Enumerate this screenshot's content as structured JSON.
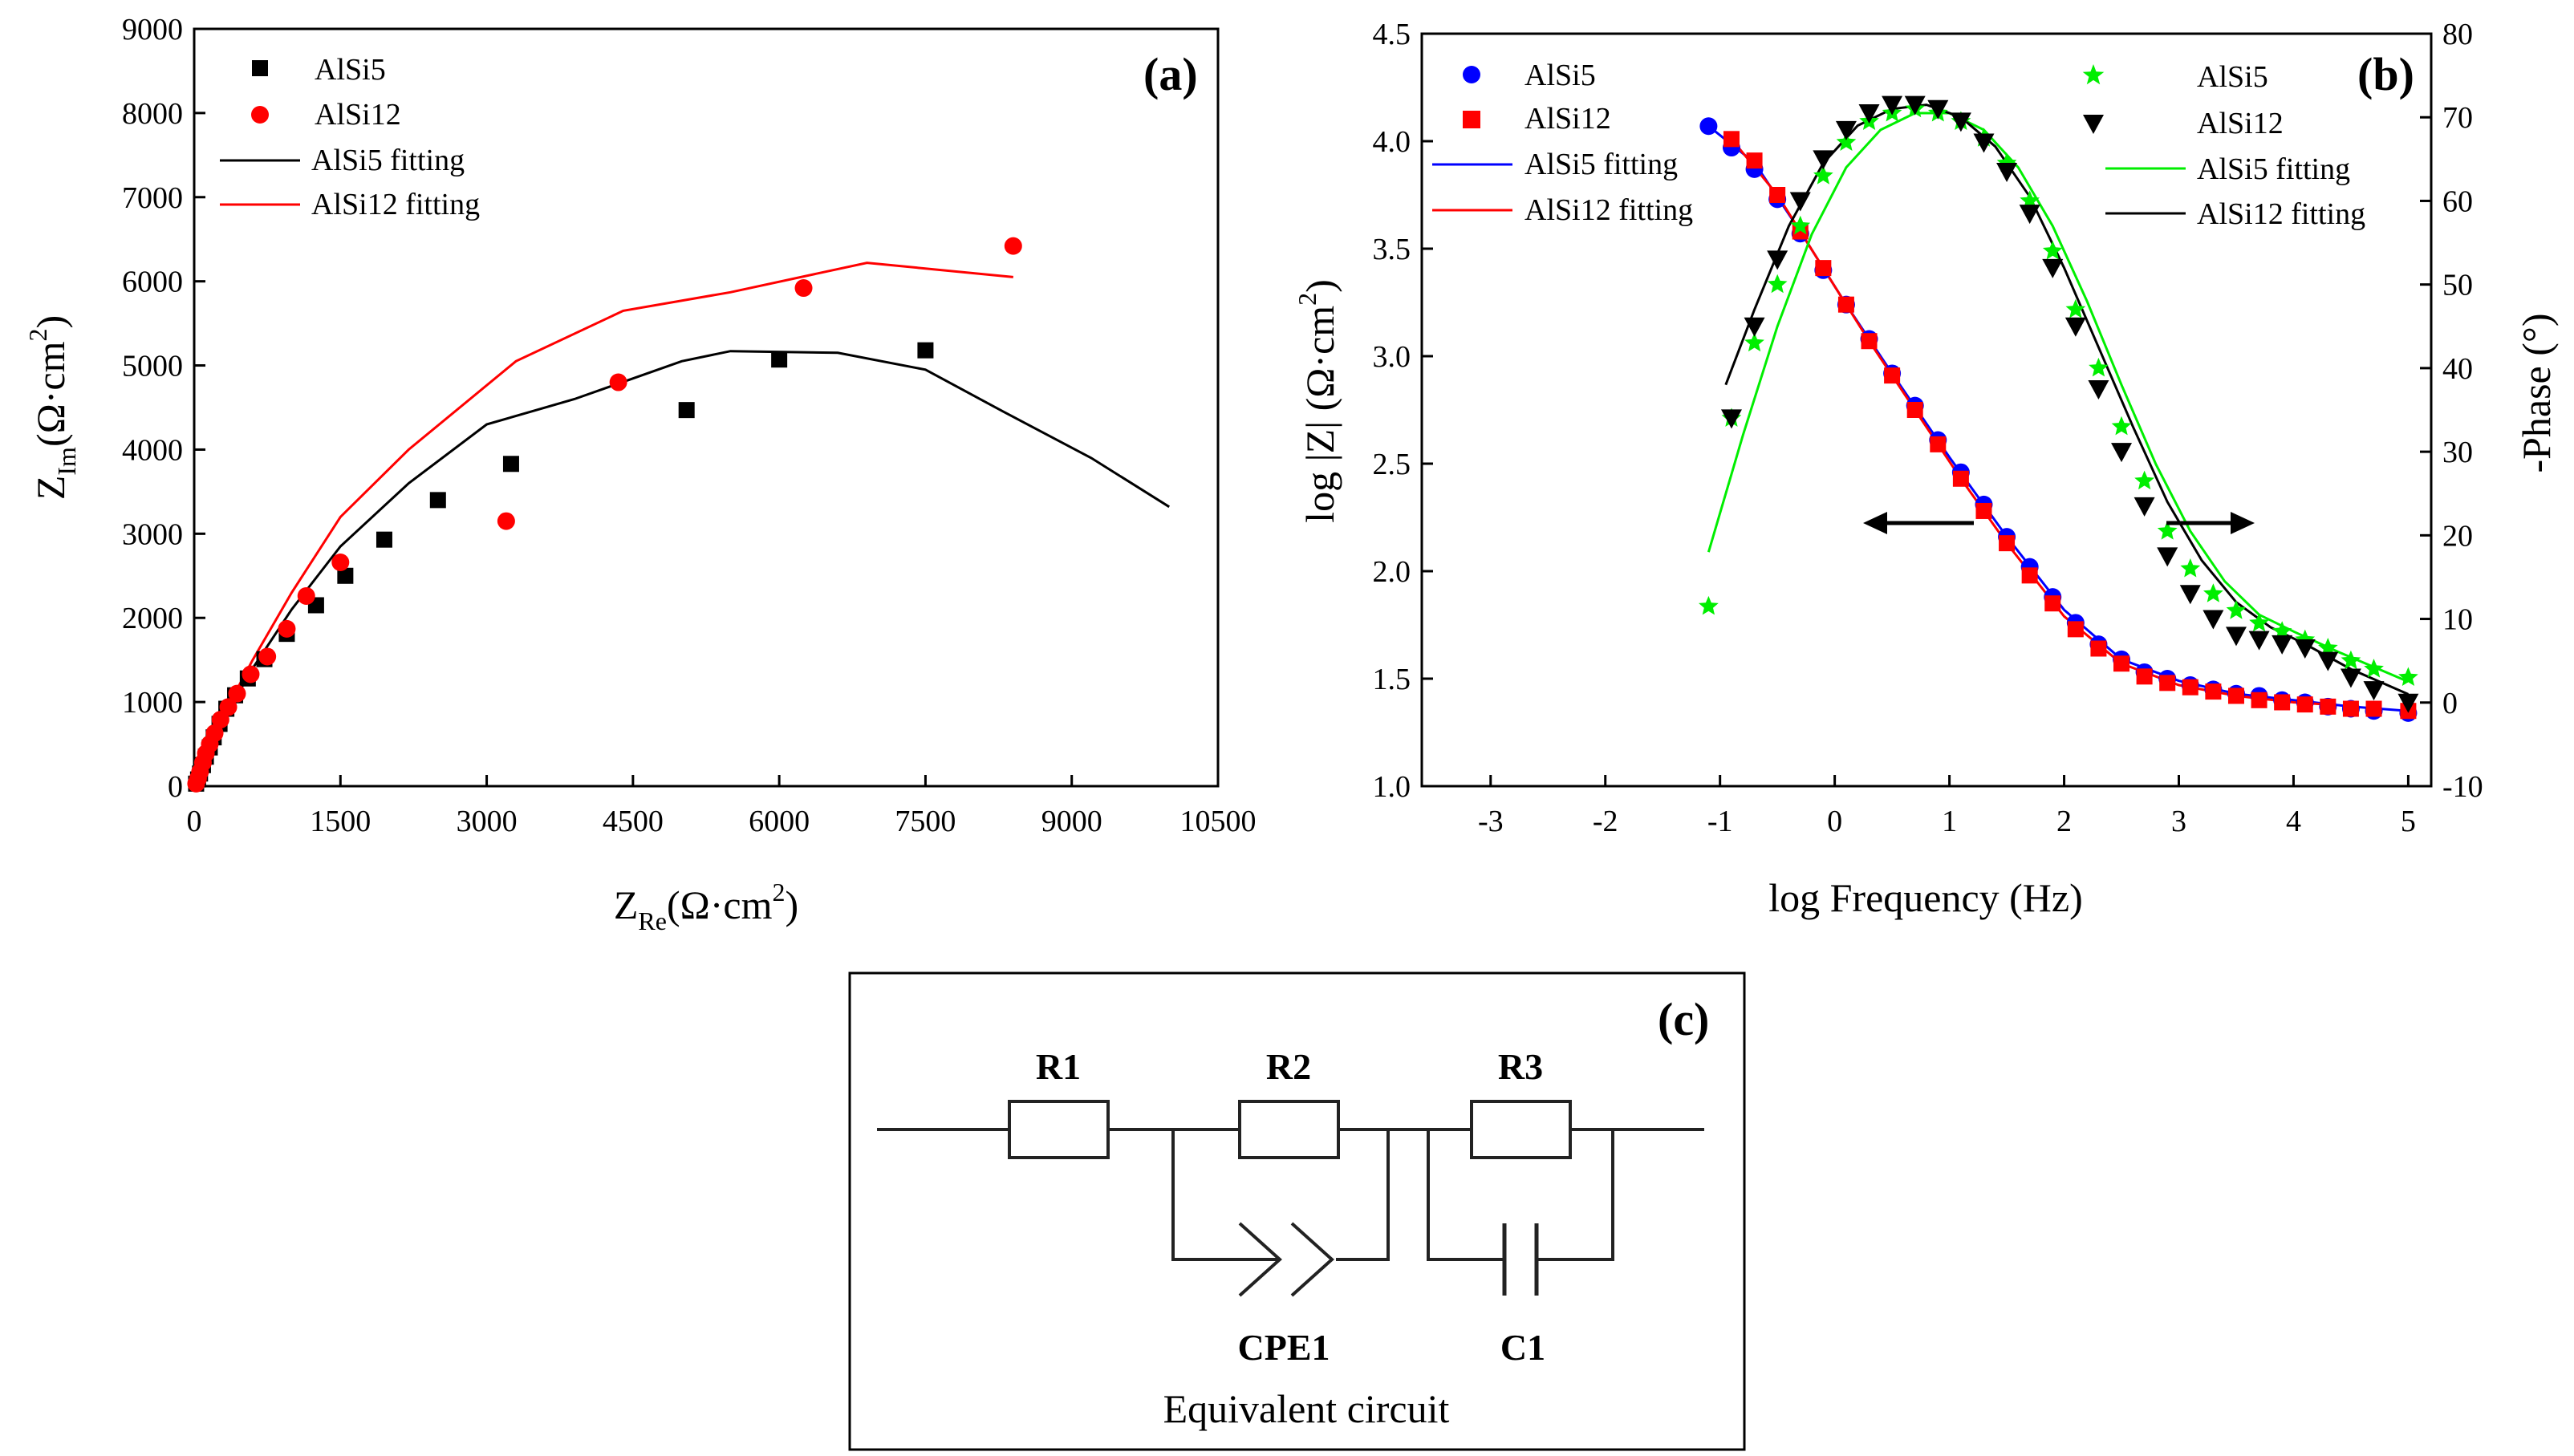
{
  "chart_data": [
    {
      "panel": "(a)",
      "type": "scatter",
      "xlabel": {
        "main": "Z",
        "sub": "Re",
        "units_pre": "(Ω·cm",
        "sup": "2",
        "units_post": ")"
      },
      "ylabel": {
        "main": "Z",
        "sub": "Im",
        "units_pre": "(Ω·cm",
        "sup": "2",
        "units_post": ")"
      },
      "xlim": [
        0,
        10500
      ],
      "ylim": [
        0,
        9000
      ],
      "xticks": [
        0,
        1500,
        3000,
        4500,
        6000,
        7500,
        9000,
        10500
      ],
      "yticks": [
        0,
        1000,
        2000,
        3000,
        4000,
        5000,
        6000,
        7000,
        8000,
        9000
      ],
      "legend": [
        "AlSi5",
        "AlSi12",
        "AlSi5 fitting",
        "AlSi12 fitting"
      ],
      "series": [
        {
          "name": "AlSi5",
          "marker": "square",
          "color": "#000000",
          "x": [
            20,
            40,
            60,
            90,
            120,
            160,
            200,
            260,
            330,
            420,
            550,
            720,
            950,
            1250,
            1550,
            1950,
            2500,
            3250,
            5050,
            6000,
            7500
          ],
          "y": [
            30,
            80,
            150,
            250,
            350,
            460,
            580,
            740,
            920,
            1080,
            1280,
            1510,
            1810,
            2150,
            2500,
            2930,
            3400,
            3830,
            4470,
            5070,
            5180
          ]
        },
        {
          "name": "AlSi12",
          "marker": "circle",
          "color": "#ff0000",
          "x": [
            20,
            40,
            60,
            90,
            120,
            160,
            210,
            270,
            350,
            440,
            580,
            750,
            950,
            1150,
            1500,
            3200,
            4350,
            6250,
            8400
          ],
          "y": [
            30,
            90,
            170,
            280,
            390,
            500,
            630,
            790,
            940,
            1100,
            1330,
            1540,
            1870,
            2260,
            2660,
            3150,
            4800,
            5920,
            6420
          ]
        },
        {
          "name": "AlSi5 fitting",
          "marker": "line",
          "color": "#000000",
          "x": [
            0,
            50,
            150,
            300,
            600,
            1000,
            1500,
            2200,
            3000,
            3900,
            5000,
            5500,
            6600,
            7500,
            8300,
            9200,
            10000
          ],
          "y": [
            0,
            170,
            450,
            800,
            1400,
            2100,
            2850,
            3600,
            4300,
            4600,
            5050,
            5170,
            5150,
            4950,
            4450,
            3900,
            3320
          ]
        },
        {
          "name": "AlSi12 fitting",
          "marker": "line",
          "color": "#ff0000",
          "x": [
            0,
            50,
            150,
            300,
            600,
            1000,
            1500,
            2200,
            3300,
            4400,
            5500,
            6900,
            8400
          ],
          "y": [
            0,
            180,
            480,
            850,
            1500,
            2300,
            3200,
            4000,
            5050,
            5650,
            5870,
            6220,
            6050
          ]
        }
      ]
    },
    {
      "panel": "(b)",
      "type": "scatter",
      "xlabel": "log Frequency (Hz)",
      "ylabel_left": {
        "pre": "log |Z| (Ω·cm",
        "sup": "2",
        "post": ")"
      },
      "ylabel_right": "-Phase (°)",
      "xlim": [
        -3.6,
        5.2
      ],
      "ylim_left": [
        1.0,
        4.5
      ],
      "ylim_right": [
        -10,
        80
      ],
      "xticks": [
        -3,
        -2,
        -1,
        0,
        1,
        2,
        3,
        4,
        5
      ],
      "yticks_left": [
        1.0,
        1.5,
        2.0,
        2.5,
        3.0,
        3.5,
        4.0,
        4.5
      ],
      "yticks_right": [
        -10,
        0,
        10,
        20,
        30,
        40,
        50,
        60,
        70,
        80
      ],
      "legend_left": [
        "AlSi5",
        "AlSi12",
        "AlSi5 fitting",
        "AlSi12 fitting"
      ],
      "legend_right": [
        "AlSi5",
        "AlSi12",
        "AlSi5 fitting",
        "AlSi12 fitting"
      ],
      "arrows": [
        "left",
        "right"
      ],
      "series": [
        {
          "name": "AlSi5",
          "kind": "log |Z|",
          "marker": "circle",
          "color": "#0000ff",
          "x": [
            -1.1,
            -0.9,
            -0.7,
            -0.5,
            -0.3,
            -0.1,
            0.1,
            0.3,
            0.5,
            0.7,
            0.9,
            1.1,
            1.3,
            1.5,
            1.7,
            1.9,
            2.1,
            2.3,
            2.5,
            2.7,
            2.9,
            3.1,
            3.3,
            3.5,
            3.7,
            3.9,
            4.1,
            4.3,
            4.5,
            4.7,
            5.0
          ],
          "y": [
            4.07,
            3.97,
            3.87,
            3.73,
            3.57,
            3.4,
            3.24,
            3.08,
            2.92,
            2.77,
            2.61,
            2.46,
            2.31,
            2.16,
            2.02,
            1.88,
            1.76,
            1.66,
            1.59,
            1.53,
            1.5,
            1.47,
            1.45,
            1.43,
            1.42,
            1.4,
            1.39,
            1.37,
            1.36,
            1.35,
            1.34
          ]
        },
        {
          "name": "AlSi12",
          "kind": "log |Z|",
          "marker": "square",
          "color": "#ff0000",
          "x": [
            -0.9,
            -0.7,
            -0.5,
            -0.3,
            -0.1,
            0.1,
            0.3,
            0.5,
            0.7,
            0.9,
            1.1,
            1.3,
            1.5,
            1.7,
            1.9,
            2.1,
            2.3,
            2.5,
            2.7,
            2.9,
            3.1,
            3.3,
            3.5,
            3.7,
            3.9,
            4.1,
            4.3,
            4.5,
            4.7,
            5.0
          ],
          "y": [
            4.01,
            3.91,
            3.75,
            3.58,
            3.41,
            3.24,
            3.07,
            2.91,
            2.75,
            2.59,
            2.43,
            2.28,
            2.13,
            1.98,
            1.85,
            1.73,
            1.64,
            1.57,
            1.51,
            1.48,
            1.46,
            1.44,
            1.42,
            1.4,
            1.39,
            1.38,
            1.37,
            1.36,
            1.36,
            1.35
          ]
        },
        {
          "name": "AlSi5 fitting",
          "kind": "log |Z|",
          "marker": "line",
          "color": "#0000ff",
          "x": [
            -1.1,
            -0.7,
            -0.3,
            0.1,
            0.5,
            1.0,
            1.5,
            2.0,
            2.5,
            3.0,
            3.5,
            4.0,
            4.5,
            5.0
          ],
          "y": [
            4.07,
            3.9,
            3.58,
            3.24,
            2.92,
            2.53,
            2.16,
            1.82,
            1.59,
            1.49,
            1.43,
            1.4,
            1.37,
            1.35
          ]
        },
        {
          "name": "AlSi12 fitting",
          "kind": "log |Z|",
          "marker": "line",
          "color": "#ff0000",
          "x": [
            -0.9,
            -0.5,
            -0.1,
            0.3,
            0.7,
            1.1,
            1.5,
            2.0,
            2.5,
            3.0,
            3.5,
            4.0,
            4.3
          ],
          "y": [
            4.01,
            3.75,
            3.41,
            3.07,
            2.75,
            2.43,
            2.13,
            1.79,
            1.57,
            1.47,
            1.42,
            1.39,
            1.38
          ]
        },
        {
          "name": "AlSi5",
          "kind": "-Phase",
          "marker": "star",
          "color": "#00ee00",
          "x": [
            -1.1,
            -0.9,
            -0.7,
            -0.5,
            -0.3,
            -0.1,
            0.1,
            0.3,
            0.5,
            0.7,
            0.9,
            1.1,
            1.3,
            1.5,
            1.7,
            1.9,
            2.1,
            2.3,
            2.5,
            2.7,
            2.9,
            3.1,
            3.3,
            3.5,
            3.7,
            3.9,
            4.1,
            4.3,
            4.5,
            4.7,
            5.0
          ],
          "y": [
            11.5,
            34,
            43,
            50,
            57,
            63,
            67,
            69.5,
            70.5,
            71,
            70.5,
            69.5,
            67.5,
            64.5,
            60,
            54,
            47,
            40,
            33,
            26.5,
            20.5,
            16,
            13,
            11,
            9.5,
            8.5,
            7.5,
            6.5,
            5,
            4,
            3
          ]
        },
        {
          "name": "AlSi12",
          "kind": "-Phase",
          "marker": "triangle-down",
          "color": "#000000",
          "x": [
            -0.9,
            -0.7,
            -0.5,
            -0.3,
            -0.1,
            0.1,
            0.3,
            0.5,
            0.7,
            0.9,
            1.1,
            1.3,
            1.5,
            1.7,
            1.9,
            2.1,
            2.3,
            2.5,
            2.7,
            2.9,
            3.1,
            3.3,
            3.5,
            3.7,
            3.9,
            4.1,
            4.3,
            4.5,
            4.7,
            5.0
          ],
          "y": [
            34,
            45,
            53,
            60,
            65,
            68.5,
            70.5,
            71.5,
            71.5,
            71,
            69.5,
            67,
            63.5,
            58.5,
            52,
            45,
            37.5,
            30,
            23.5,
            17.5,
            13,
            10,
            8,
            7.5,
            7,
            6.5,
            5,
            3,
            1.5,
            0
          ]
        },
        {
          "name": "AlSi5 fitting",
          "kind": "-Phase",
          "marker": "line",
          "color": "#00ee00",
          "x": [
            -1.1,
            -0.8,
            -0.5,
            -0.2,
            0.1,
            0.4,
            0.7,
            1.0,
            1.3,
            1.6,
            1.9,
            2.2,
            2.5,
            2.8,
            3.1,
            3.4,
            3.7,
            4.0,
            4.4,
            5.0
          ],
          "y": [
            18,
            32,
            45,
            56,
            64,
            68.5,
            70.5,
            70.5,
            68.5,
            64,
            57,
            48,
            38,
            28.5,
            20.5,
            14.5,
            10.5,
            8.5,
            6,
            2.5
          ]
        },
        {
          "name": "AlSi12 fitting",
          "kind": "-Phase",
          "marker": "line",
          "color": "#000000",
          "x": [
            -0.95,
            -0.7,
            -0.4,
            -0.1,
            0.2,
            0.5,
            0.8,
            1.1,
            1.4,
            1.7,
            2.0,
            2.3,
            2.6,
            2.9,
            3.2,
            3.5,
            3.8,
            4.1,
            4.5,
            5.0
          ],
          "y": [
            38,
            47,
            57,
            64.5,
            69,
            71,
            71.5,
            70,
            66.5,
            60.5,
            52,
            42.5,
            33,
            24,
            17,
            12,
            9,
            7,
            4,
            1
          ]
        }
      ]
    }
  ],
  "panel_a_label": "(a)",
  "panel_b_label": "(b)",
  "circuit": {
    "panel_label": "(c)",
    "title": "Equivalent circuit",
    "components": [
      "R1",
      "R2",
      "R3",
      "CPE1",
      "C1"
    ]
  }
}
